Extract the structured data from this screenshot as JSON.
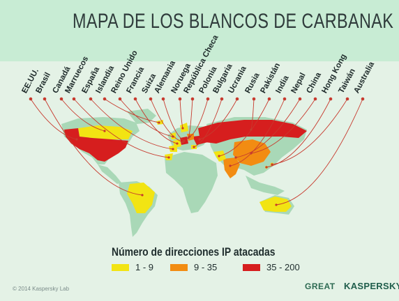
{
  "header": {
    "title": "MAPA DE LOS BLANCOS DE CARBANAK"
  },
  "countries": [
    "EE.UU.",
    "Brasil",
    "Canadá",
    "Marruecos",
    "España",
    "Islandia",
    "Reino Unido",
    "Francia",
    "Suiza",
    "Alemania",
    "Noruega",
    "República Checa",
    "Polonia",
    "Bulgaria",
    "Ucrania",
    "Rusia",
    "Pakistán",
    "India",
    "Nepal",
    "China",
    "Hong Kong",
    "Taiwán",
    "Australia"
  ],
  "legend": {
    "title": "Número de direcciones IP atacadas",
    "items": [
      {
        "label": "1 - 9",
        "color": "#f2e413"
      },
      {
        "label": "9 - 35",
        "color": "#f28c12"
      },
      {
        "label": "35 - 200",
        "color": "#d61e1e"
      }
    ]
  },
  "colors": {
    "land": "#a9d8b7",
    "line": "#c73a2e",
    "header_bg": "#c8ecd4",
    "background": "#e4f2e6"
  },
  "footer": {
    "copyright": "© 2014 Kaspersky Lab",
    "logo_great": "GREAT",
    "logo_kaspersky": "KASPERSKY"
  }
}
